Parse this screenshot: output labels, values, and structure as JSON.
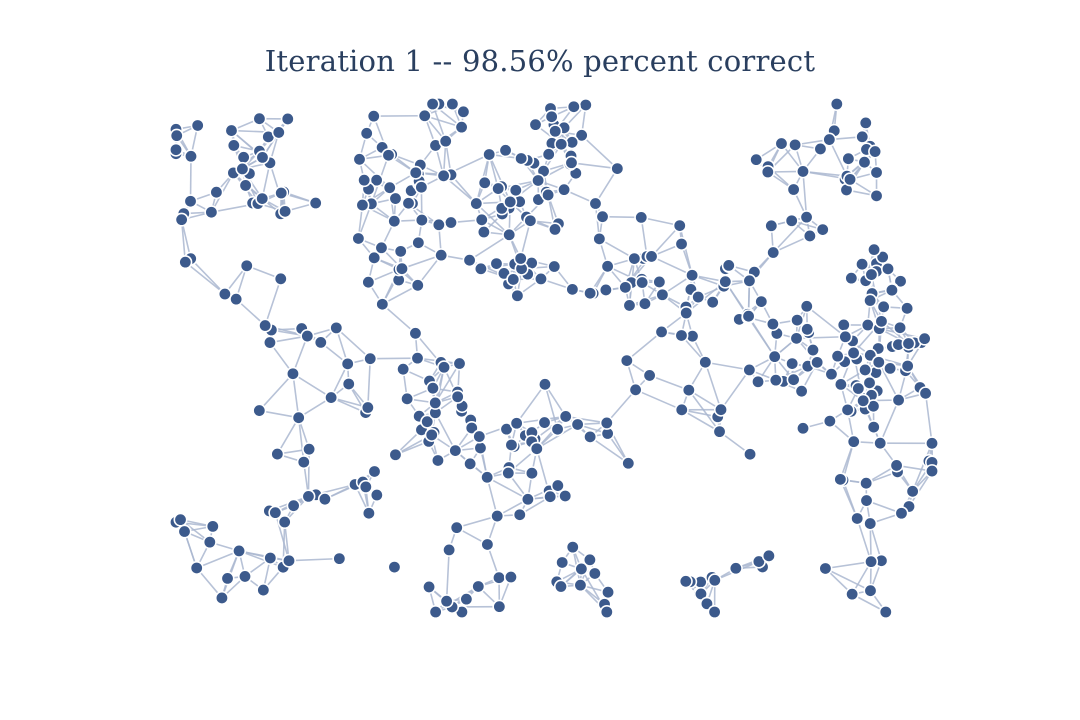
{
  "title": "Iteration 1 -- 98.56% percent correct",
  "colors": {
    "node": "#3c5a8c",
    "edge": "#aab7d0",
    "title": "#2a3f5f"
  },
  "chart_data": {
    "type": "network",
    "node_count": 480,
    "layout": "random-geometric",
    "accuracy_percent": 98.56,
    "iteration": 1
  }
}
